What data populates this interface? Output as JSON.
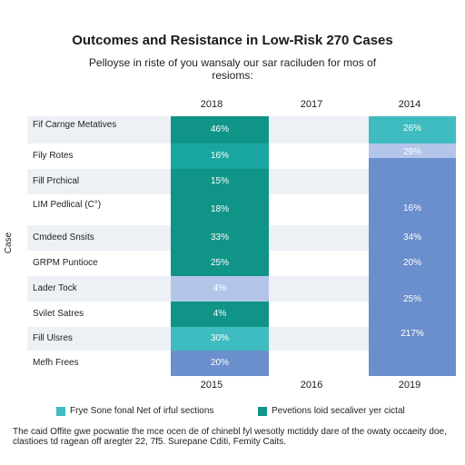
{
  "colors": {
    "teal": "#1aa6a0",
    "dark_teal": "#119488",
    "blue": "#6b8fcd",
    "light_blue": "#b3c6ea",
    "light_teal": "#3fbcc0",
    "stripe": "#edf1f6"
  },
  "chart_data": {
    "type": "table",
    "title": "Outcomes and Resistance in Low-Risk 270 Cases",
    "subtitle": "Pelloyse in riste of you wansaly our sar raciluden for mos of resioms:",
    "ylabel": "Case",
    "top_columns": [
      "2018",
      "2017",
      "2014"
    ],
    "bottom_columns": [
      "2015",
      "2016",
      "2019"
    ],
    "rows": [
      "Fif Carnge Metatives",
      "Fily Rotes",
      "Fill Prchical",
      "LIM Pedlical (C°)",
      "Cmdeed Snsits",
      "GRPM Puntioce",
      "Lader Tock",
      "Svilet Satres",
      "Fill Ulsres",
      "Mefh Frees"
    ],
    "series": [
      {
        "column": "2018",
        "values": [
          "46%",
          "16%",
          "15%",
          "18%",
          "33%",
          "25%",
          "4%",
          "4%",
          "30%",
          "20%"
        ]
      },
      {
        "column": "2014",
        "values": [
          "26%",
          "29%",
          "",
          "16%",
          "34%",
          "20%",
          "",
          "25%",
          "217%",
          ""
        ]
      }
    ]
  },
  "legend": [
    {
      "label": "Frye Sone fonal Net of irful sections",
      "color": "#3fbcc0"
    },
    {
      "label": "Pevetions loid secaliver yer cictal",
      "color": "#119488"
    }
  ],
  "footnote": "The caid Offite gwe pocwatie the mce ocen de of chinebl fyl wesotly mctiddy dare of the owaty occaeity doe, clastioes td ragean off aregter 22, 7f5. Surepane Cditi, Femity Caits."
}
